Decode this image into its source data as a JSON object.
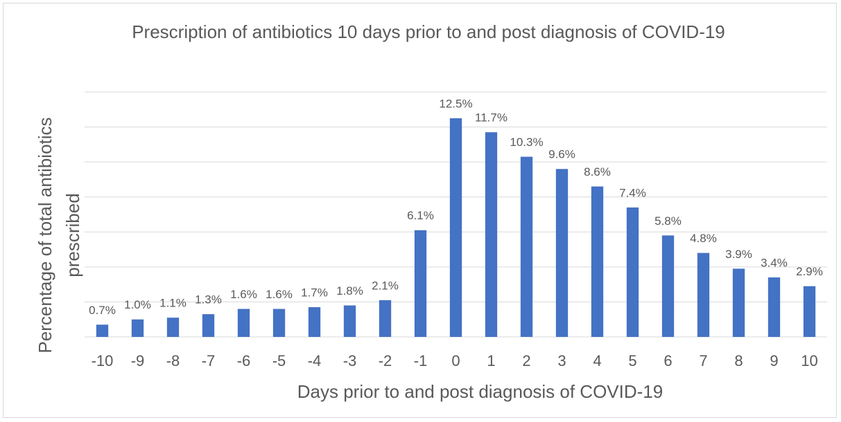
{
  "chart_data": {
    "type": "bar",
    "title": "Prescription of antibiotics 10 days prior to and post diagnosis of COVID-19",
    "x_label": "Days prior to and post diagnosis of COVID-19",
    "y_label": "Percentage of total antibiotics prescribed",
    "categories": [
      "-10",
      "-9",
      "-8",
      "-7",
      "-6",
      "-5",
      "-4",
      "-3",
      "-2",
      "-1",
      "0",
      "1",
      "2",
      "3",
      "4",
      "5",
      "6",
      "7",
      "8",
      "9",
      "10"
    ],
    "values": [
      0.7,
      1.0,
      1.1,
      1.3,
      1.6,
      1.6,
      1.7,
      1.8,
      2.1,
      6.1,
      12.5,
      11.7,
      10.3,
      9.6,
      8.6,
      7.4,
      5.8,
      4.8,
      3.9,
      3.4,
      2.9
    ],
    "value_labels": [
      "0.7%",
      "1.0%",
      "1.1%",
      "1.3%",
      "1.6%",
      "1.6%",
      "1.7%",
      "1.8%",
      "2.1%",
      "6.1%",
      "12.5%",
      "11.7%",
      "10.3%",
      "9.6%",
      "8.6%",
      "7.4%",
      "5.8%",
      "4.8%",
      "3.9%",
      "3.4%",
      "2.9%"
    ],
    "color": "#4472c4",
    "ylim": [
      0,
      14
    ],
    "yticks": [
      0,
      2,
      4,
      6,
      8,
      10,
      12,
      14
    ],
    "grid": true
  }
}
